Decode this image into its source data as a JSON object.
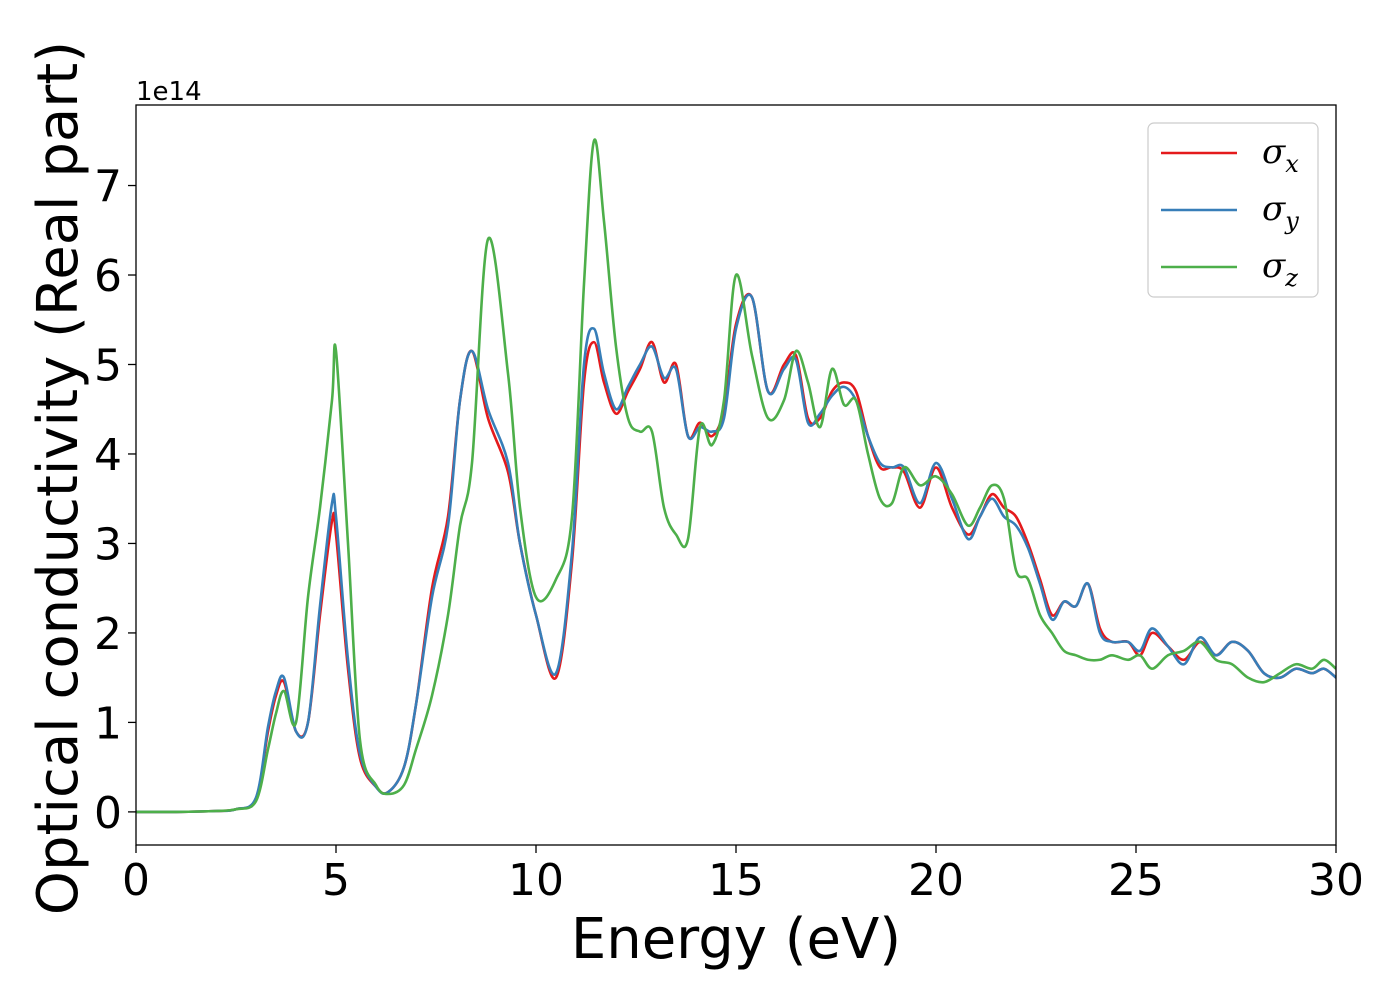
{
  "chart_data": {
    "type": "line",
    "xlabel": "Energy (eV)",
    "ylabel": "Optical conductivity (Real part)",
    "y_offset_label": "1e14",
    "xlim": [
      0,
      30
    ],
    "ylim": [
      -0.37,
      7.9
    ],
    "x_ticks": [
      "0",
      "5",
      "10",
      "15",
      "20",
      "25",
      "30"
    ],
    "y_ticks": [
      "0",
      "1",
      "2",
      "3",
      "4",
      "5",
      "6",
      "7"
    ],
    "grid": false,
    "legend_position": "top-right",
    "x": [
      0,
      1,
      2,
      2.5,
      3,
      3.3,
      3.5,
      3.7,
      4.0,
      4.3,
      4.6,
      4.9,
      5.0,
      5.3,
      5.6,
      6.0,
      6.3,
      6.7,
      7.0,
      7.4,
      7.8,
      8.1,
      8.4,
      8.8,
      9.3,
      9.6,
      10.0,
      10.5,
      10.9,
      11.2,
      11.45,
      11.7,
      12.0,
      12.3,
      12.6,
      12.9,
      13.2,
      13.5,
      13.8,
      14.1,
      14.4,
      14.7,
      15.0,
      15.4,
      15.8,
      16.2,
      16.5,
      16.8,
      17.1,
      17.4,
      17.7,
      18.0,
      18.3,
      18.6,
      18.9,
      19.2,
      19.6,
      20.0,
      20.4,
      20.8,
      21.1,
      21.4,
      21.7,
      22.0,
      22.3,
      22.6,
      22.9,
      23.2,
      23.5,
      23.8,
      24.1,
      24.4,
      24.8,
      25.1,
      25.4,
      25.8,
      26.2,
      26.6,
      27.0,
      27.4,
      27.8,
      28.2,
      28.6,
      29.0,
      29.4,
      29.7,
      30.0
    ],
    "series": [
      {
        "name": "σx",
        "legend_main": "σ",
        "legend_sub": "x",
        "color": "#e41a1c",
        "values": [
          0,
          0,
          0.01,
          0.03,
          0.15,
          0.9,
          1.3,
          1.45,
          0.9,
          1.0,
          2.2,
          3.25,
          3.1,
          1.6,
          0.6,
          0.28,
          0.22,
          0.5,
          1.2,
          2.5,
          3.3,
          4.6,
          5.15,
          4.4,
          3.8,
          3.0,
          2.2,
          1.5,
          2.8,
          4.8,
          5.25,
          4.8,
          4.45,
          4.7,
          4.95,
          5.25,
          4.8,
          5.0,
          4.2,
          4.35,
          4.2,
          4.5,
          5.45,
          5.75,
          4.7,
          5.0,
          5.1,
          4.4,
          4.4,
          4.7,
          4.8,
          4.7,
          4.2,
          3.85,
          3.85,
          3.8,
          3.4,
          3.85,
          3.4,
          3.1,
          3.3,
          3.55,
          3.4,
          3.3,
          3.0,
          2.6,
          2.2,
          2.35,
          2.3,
          2.55,
          2.05,
          1.9,
          1.9,
          1.75,
          2.0,
          1.85,
          1.7,
          1.9,
          1.75,
          1.9,
          1.8,
          1.55,
          1.5,
          1.6,
          1.55,
          1.6,
          1.5
        ]
      },
      {
        "name": "σy",
        "legend_main": "σ",
        "legend_sub": "y",
        "color": "#377eb8",
        "values": [
          0,
          0,
          0.01,
          0.03,
          0.16,
          0.95,
          1.35,
          1.5,
          0.9,
          1.0,
          2.3,
          3.45,
          3.3,
          1.7,
          0.65,
          0.28,
          0.22,
          0.5,
          1.2,
          2.4,
          3.2,
          4.6,
          5.15,
          4.5,
          3.9,
          3.0,
          2.2,
          1.55,
          2.9,
          5.0,
          5.4,
          4.9,
          4.5,
          4.75,
          5.0,
          5.2,
          4.85,
          4.95,
          4.2,
          4.3,
          4.25,
          4.4,
          5.4,
          5.75,
          4.7,
          4.95,
          5.05,
          4.35,
          4.45,
          4.65,
          4.75,
          4.6,
          4.2,
          3.9,
          3.85,
          3.85,
          3.45,
          3.9,
          3.5,
          3.05,
          3.3,
          3.5,
          3.3,
          3.2,
          2.95,
          2.55,
          2.15,
          2.35,
          2.3,
          2.55,
          2.0,
          1.9,
          1.9,
          1.8,
          2.05,
          1.85,
          1.65,
          1.95,
          1.75,
          1.9,
          1.8,
          1.55,
          1.5,
          1.6,
          1.55,
          1.6,
          1.5
        ]
      },
      {
        "name": "σz",
        "legend_main": "σ",
        "legend_sub": "z",
        "color": "#4daf4a",
        "values": [
          0,
          0,
          0.01,
          0.03,
          0.12,
          0.7,
          1.1,
          1.35,
          1.0,
          2.4,
          3.4,
          4.6,
          5.15,
          3.0,
          0.8,
          0.3,
          0.2,
          0.3,
          0.7,
          1.3,
          2.2,
          3.2,
          3.9,
          6.4,
          4.9,
          3.4,
          2.4,
          2.6,
          3.3,
          5.9,
          7.5,
          6.6,
          5.2,
          4.4,
          4.25,
          4.25,
          3.4,
          3.1,
          3.05,
          4.3,
          4.1,
          4.6,
          6.0,
          5.1,
          4.4,
          4.6,
          5.15,
          4.8,
          4.3,
          4.95,
          4.55,
          4.6,
          4.0,
          3.5,
          3.45,
          3.85,
          3.65,
          3.75,
          3.55,
          3.2,
          3.4,
          3.65,
          3.5,
          2.7,
          2.6,
          2.2,
          2.0,
          1.8,
          1.75,
          1.7,
          1.7,
          1.75,
          1.7,
          1.75,
          1.6,
          1.75,
          1.8,
          1.9,
          1.7,
          1.65,
          1.5,
          1.45,
          1.55,
          1.65,
          1.6,
          1.7,
          1.6
        ]
      }
    ]
  }
}
